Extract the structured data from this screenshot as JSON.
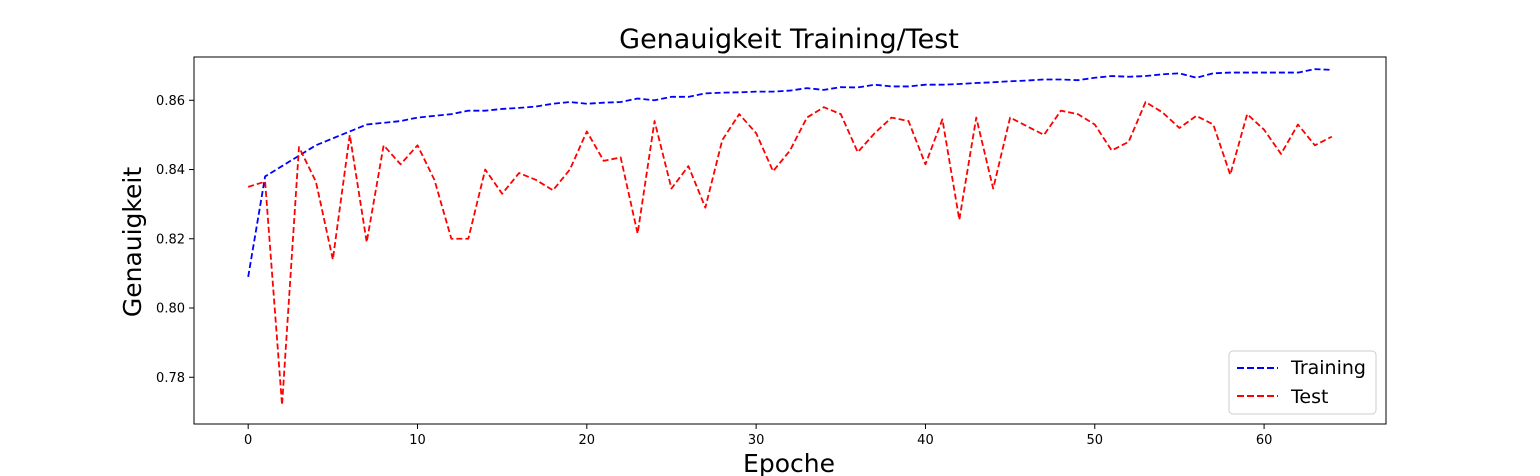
{
  "chart_data": {
    "type": "line",
    "title": "Genauigkeit Training/Test",
    "xlabel": "Epoche",
    "ylabel": "Genauigkeit",
    "xlim": [
      -3.2,
      67.2
    ],
    "ylim": [
      0.7665,
      0.8725
    ],
    "xticks": [
      0,
      10,
      20,
      30,
      40,
      50,
      60
    ],
    "yticks": [
      0.78,
      0.8,
      0.82,
      0.84,
      0.86
    ],
    "ytick_labels": [
      "0.78",
      "0.80",
      "0.82",
      "0.84",
      "0.86"
    ],
    "grid": false,
    "legend_position": "lower-right",
    "series": [
      {
        "name": "Training",
        "color": "#0000ff",
        "style": "dashed",
        "x": [
          0,
          1,
          2,
          3,
          4,
          5,
          6,
          7,
          8,
          9,
          10,
          11,
          12,
          13,
          14,
          15,
          16,
          17,
          18,
          19,
          20,
          21,
          22,
          23,
          24,
          25,
          26,
          27,
          28,
          29,
          30,
          31,
          32,
          33,
          34,
          35,
          36,
          37,
          38,
          39,
          40,
          41,
          42,
          43,
          44,
          45,
          46,
          47,
          48,
          49,
          50,
          51,
          52,
          53,
          54,
          55,
          56,
          57,
          58,
          59,
          60,
          61,
          62,
          63,
          64
        ],
        "values": [
          0.809,
          0.838,
          0.841,
          0.844,
          0.847,
          0.849,
          0.851,
          0.853,
          0.8535,
          0.854,
          0.855,
          0.8555,
          0.856,
          0.857,
          0.857,
          0.8575,
          0.8578,
          0.8582,
          0.859,
          0.8595,
          0.859,
          0.8593,
          0.8595,
          0.8605,
          0.86,
          0.861,
          0.861,
          0.862,
          0.8622,
          0.8623,
          0.8625,
          0.8625,
          0.8628,
          0.8635,
          0.863,
          0.8638,
          0.8637,
          0.8645,
          0.864,
          0.864,
          0.8645,
          0.8645,
          0.8647,
          0.865,
          0.8652,
          0.8655,
          0.8657,
          0.866,
          0.866,
          0.8658,
          0.8665,
          0.867,
          0.8668,
          0.867,
          0.8675,
          0.8678,
          0.8665,
          0.8678,
          0.868,
          0.868,
          0.868,
          0.868,
          0.868,
          0.869,
          0.8688
        ]
      },
      {
        "name": "Test",
        "color": "#ff0000",
        "style": "dashed",
        "x": [
          0,
          1,
          2,
          3,
          4,
          5,
          6,
          7,
          8,
          9,
          10,
          11,
          12,
          13,
          14,
          15,
          16,
          17,
          18,
          19,
          20,
          21,
          22,
          23,
          24,
          25,
          26,
          27,
          28,
          29,
          30,
          31,
          32,
          33,
          34,
          35,
          36,
          37,
          38,
          39,
          40,
          41,
          42,
          43,
          44,
          45,
          46,
          47,
          48,
          49,
          50,
          51,
          52,
          53,
          54,
          55,
          56,
          57,
          58,
          59,
          60,
          61,
          62,
          63,
          64
        ],
        "values": [
          0.835,
          0.8365,
          0.772,
          0.8465,
          0.8365,
          0.814,
          0.85,
          0.819,
          0.847,
          0.8415,
          0.847,
          0.837,
          0.82,
          0.82,
          0.84,
          0.833,
          0.839,
          0.837,
          0.834,
          0.84,
          0.851,
          0.8425,
          0.8435,
          0.8215,
          0.854,
          0.8345,
          0.841,
          0.829,
          0.8485,
          0.856,
          0.8505,
          0.8395,
          0.8455,
          0.855,
          0.858,
          0.856,
          0.845,
          0.8505,
          0.855,
          0.854,
          0.8415,
          0.8545,
          0.8255,
          0.855,
          0.8345,
          0.855,
          0.8525,
          0.85,
          0.857,
          0.856,
          0.853,
          0.8455,
          0.848,
          0.8595,
          0.8565,
          0.852,
          0.8555,
          0.853,
          0.8385,
          0.856,
          0.8515,
          0.8445,
          0.853,
          0.847,
          0.8495
        ]
      }
    ]
  }
}
